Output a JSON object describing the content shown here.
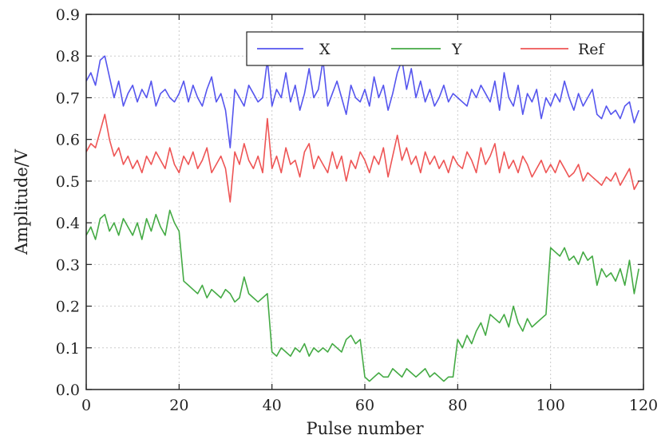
{
  "chart_data": {
    "type": "line",
    "title": "",
    "xlabel": "Pulse number",
    "ylabel": "Amplitude/V",
    "xlim": [
      0,
      120
    ],
    "ylim": [
      0.0,
      0.9
    ],
    "xticks": [
      0,
      20,
      40,
      60,
      80,
      100,
      120
    ],
    "yticks": [
      0.0,
      0.1,
      0.2,
      0.3,
      0.4,
      0.5,
      0.6,
      0.7,
      0.8,
      0.9
    ],
    "xtick_labels": [
      "0",
      "20",
      "40",
      "60",
      "80",
      "100",
      "120"
    ],
    "ytick_labels": [
      "0.0",
      "0.1",
      "0.2",
      "0.3",
      "0.4",
      "0.5",
      "0.6",
      "0.7",
      "0.8",
      "0.9"
    ],
    "grid": true,
    "legend_position": "top-right",
    "x": [
      0,
      1,
      2,
      3,
      4,
      5,
      6,
      7,
      8,
      9,
      10,
      11,
      12,
      13,
      14,
      15,
      16,
      17,
      18,
      19,
      20,
      21,
      22,
      23,
      24,
      25,
      26,
      27,
      28,
      29,
      30,
      31,
      32,
      33,
      34,
      35,
      36,
      37,
      38,
      39,
      40,
      41,
      42,
      43,
      44,
      45,
      46,
      47,
      48,
      49,
      50,
      51,
      52,
      53,
      54,
      55,
      56,
      57,
      58,
      59,
      60,
      61,
      62,
      63,
      64,
      65,
      66,
      67,
      68,
      69,
      70,
      71,
      72,
      73,
      74,
      75,
      76,
      77,
      78,
      79,
      80,
      81,
      82,
      83,
      84,
      85,
      86,
      87,
      88,
      89,
      90,
      91,
      92,
      93,
      94,
      95,
      96,
      97,
      98,
      99,
      100,
      101,
      102,
      103,
      104,
      105,
      106,
      107,
      108,
      109,
      110,
      111,
      112,
      113,
      114,
      115,
      116,
      117,
      118,
      119
    ],
    "series": [
      {
        "name": "X",
        "color": "#5555ee",
        "values": [
          0.74,
          0.76,
          0.73,
          0.79,
          0.8,
          0.75,
          0.7,
          0.74,
          0.68,
          0.71,
          0.73,
          0.69,
          0.72,
          0.7,
          0.74,
          0.68,
          0.71,
          0.72,
          0.7,
          0.69,
          0.71,
          0.74,
          0.69,
          0.73,
          0.7,
          0.68,
          0.72,
          0.75,
          0.69,
          0.71,
          0.67,
          0.58,
          0.72,
          0.7,
          0.68,
          0.73,
          0.71,
          0.69,
          0.7,
          0.79,
          0.68,
          0.72,
          0.7,
          0.76,
          0.69,
          0.73,
          0.67,
          0.71,
          0.77,
          0.7,
          0.72,
          0.79,
          0.68,
          0.71,
          0.74,
          0.7,
          0.66,
          0.73,
          0.7,
          0.69,
          0.72,
          0.68,
          0.75,
          0.7,
          0.73,
          0.67,
          0.71,
          0.76,
          0.79,
          0.72,
          0.77,
          0.7,
          0.74,
          0.69,
          0.72,
          0.68,
          0.7,
          0.73,
          0.69,
          0.71,
          0.7,
          0.69,
          0.68,
          0.72,
          0.7,
          0.73,
          0.71,
          0.69,
          0.74,
          0.67,
          0.76,
          0.7,
          0.68,
          0.73,
          0.66,
          0.71,
          0.69,
          0.72,
          0.65,
          0.7,
          0.68,
          0.71,
          0.69,
          0.74,
          0.7,
          0.67,
          0.71,
          0.68,
          0.7,
          0.72,
          0.66,
          0.65,
          0.68,
          0.66,
          0.67,
          0.65,
          0.68,
          0.69,
          0.64,
          0.67
        ]
      },
      {
        "name": "Y",
        "color": "#44aa44",
        "values": [
          0.37,
          0.39,
          0.36,
          0.41,
          0.42,
          0.38,
          0.4,
          0.37,
          0.41,
          0.39,
          0.37,
          0.4,
          0.36,
          0.41,
          0.38,
          0.42,
          0.39,
          0.37,
          0.43,
          0.4,
          0.38,
          0.26,
          0.25,
          0.24,
          0.23,
          0.25,
          0.22,
          0.24,
          0.23,
          0.22,
          0.24,
          0.23,
          0.21,
          0.22,
          0.27,
          0.23,
          0.22,
          0.21,
          0.22,
          0.23,
          0.09,
          0.08,
          0.1,
          0.09,
          0.08,
          0.1,
          0.09,
          0.11,
          0.08,
          0.1,
          0.09,
          0.1,
          0.09,
          0.11,
          0.1,
          0.09,
          0.12,
          0.13,
          0.11,
          0.12,
          0.03,
          0.02,
          0.03,
          0.04,
          0.03,
          0.03,
          0.05,
          0.04,
          0.03,
          0.05,
          0.04,
          0.03,
          0.04,
          0.05,
          0.03,
          0.04,
          0.03,
          0.02,
          0.03,
          0.03,
          0.12,
          0.1,
          0.13,
          0.11,
          0.14,
          0.16,
          0.13,
          0.18,
          0.17,
          0.16,
          0.18,
          0.15,
          0.2,
          0.16,
          0.14,
          0.17,
          0.15,
          0.16,
          0.17,
          0.18,
          0.34,
          0.33,
          0.32,
          0.34,
          0.31,
          0.32,
          0.3,
          0.33,
          0.31,
          0.32,
          0.25,
          0.29,
          0.27,
          0.28,
          0.26,
          0.29,
          0.25,
          0.31,
          0.23,
          0.29
        ]
      },
      {
        "name": "Ref",
        "color": "#ee5555",
        "values": [
          0.57,
          0.59,
          0.58,
          0.62,
          0.66,
          0.6,
          0.56,
          0.58,
          0.54,
          0.56,
          0.53,
          0.55,
          0.52,
          0.56,
          0.54,
          0.57,
          0.55,
          0.53,
          0.58,
          0.54,
          0.52,
          0.56,
          0.54,
          0.57,
          0.53,
          0.55,
          0.58,
          0.52,
          0.54,
          0.56,
          0.53,
          0.45,
          0.57,
          0.54,
          0.59,
          0.55,
          0.53,
          0.56,
          0.52,
          0.65,
          0.53,
          0.56,
          0.52,
          0.58,
          0.54,
          0.55,
          0.51,
          0.57,
          0.59,
          0.53,
          0.56,
          0.54,
          0.52,
          0.57,
          0.53,
          0.56,
          0.5,
          0.55,
          0.53,
          0.57,
          0.55,
          0.52,
          0.56,
          0.54,
          0.58,
          0.51,
          0.56,
          0.61,
          0.55,
          0.58,
          0.54,
          0.56,
          0.52,
          0.57,
          0.54,
          0.56,
          0.53,
          0.55,
          0.52,
          0.56,
          0.54,
          0.53,
          0.57,
          0.55,
          0.52,
          0.58,
          0.54,
          0.56,
          0.59,
          0.52,
          0.57,
          0.53,
          0.55,
          0.52,
          0.56,
          0.54,
          0.51,
          0.53,
          0.55,
          0.52,
          0.54,
          0.52,
          0.55,
          0.53,
          0.51,
          0.52,
          0.54,
          0.5,
          0.52,
          0.51,
          0.5,
          0.49,
          0.51,
          0.5,
          0.52,
          0.49,
          0.51,
          0.53,
          0.48,
          0.5
        ]
      }
    ]
  }
}
